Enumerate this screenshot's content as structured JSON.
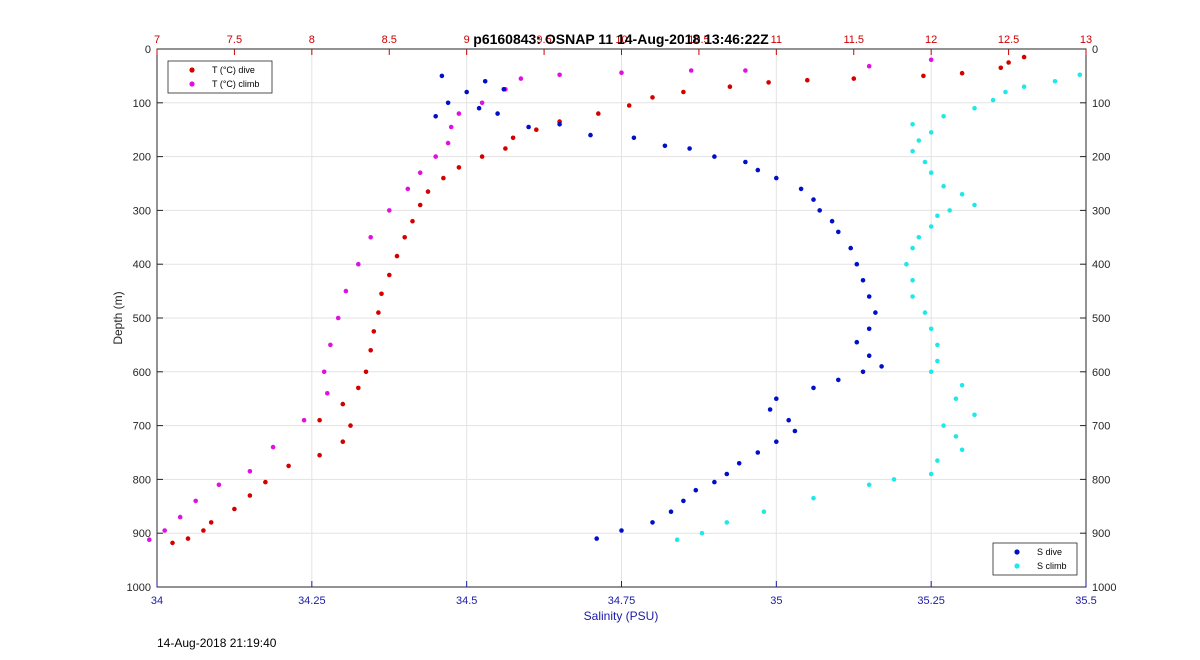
{
  "timestamp": "14-Aug-2018 21:19:40",
  "chart_data": {
    "type": "scatter",
    "title": "p6160843: OSNAP 11 14-Aug-2018 13:46:22Z",
    "xlabel": "Salinity (PSU)",
    "ylabel": "Depth (m)",
    "x_bottom": {
      "lim": [
        34,
        35.5
      ],
      "ticks": [
        "34",
        "34.25",
        "34.5",
        "34.75",
        "35",
        "35.25",
        "35.5"
      ],
      "color": "#1a1aa8"
    },
    "x_top": {
      "lim": [
        7,
        13
      ],
      "ticks": [
        "7",
        "7.5",
        "8",
        "8.5",
        "9",
        "9.5",
        "10",
        "10.5",
        "11",
        "11.5",
        "12",
        "12.5",
        "13"
      ],
      "color": "#cc0000"
    },
    "y": {
      "lim": [
        0,
        1000
      ],
      "reversed": true,
      "ticks": [
        "0",
        "100",
        "200",
        "300",
        "400",
        "500",
        "600",
        "700",
        "800",
        "900",
        "1000"
      ]
    },
    "grid": true,
    "legend_top_left": [
      {
        "name": "T (°C) dive",
        "color": "#d40000"
      },
      {
        "name": "T (°C) climb",
        "color": "#e010e0"
      }
    ],
    "legend_bottom_right": [
      {
        "name": "S dive",
        "color": "#0010c8"
      },
      {
        "name": "S climb",
        "color": "#20e8e8"
      }
    ],
    "series": [
      {
        "name": "T (°C) dive",
        "axis": "top",
        "color": "#d40000",
        "points": [
          [
            12.6,
            15
          ],
          [
            12.5,
            25
          ],
          [
            12.45,
            35
          ],
          [
            12.2,
            45
          ],
          [
            11.95,
            50
          ],
          [
            11.5,
            55
          ],
          [
            11.2,
            58
          ],
          [
            10.95,
            62
          ],
          [
            10.7,
            70
          ],
          [
            10.4,
            80
          ],
          [
            10.2,
            90
          ],
          [
            10.05,
            105
          ],
          [
            9.85,
            120
          ],
          [
            9.6,
            135
          ],
          [
            9.45,
            150
          ],
          [
            9.3,
            165
          ],
          [
            9.25,
            185
          ],
          [
            9.1,
            200
          ],
          [
            8.95,
            220
          ],
          [
            8.85,
            240
          ],
          [
            8.75,
            265
          ],
          [
            8.7,
            290
          ],
          [
            8.65,
            320
          ],
          [
            8.6,
            350
          ],
          [
            8.55,
            385
          ],
          [
            8.5,
            420
          ],
          [
            8.45,
            455
          ],
          [
            8.43,
            490
          ],
          [
            8.4,
            525
          ],
          [
            8.38,
            560
          ],
          [
            8.35,
            600
          ],
          [
            8.3,
            630
          ],
          [
            8.2,
            660
          ],
          [
            8.05,
            690
          ],
          [
            8.25,
            700
          ],
          [
            8.2,
            730
          ],
          [
            8.05,
            755
          ],
          [
            7.85,
            775
          ],
          [
            7.7,
            805
          ],
          [
            7.6,
            830
          ],
          [
            7.5,
            855
          ],
          [
            7.35,
            880
          ],
          [
            7.3,
            895
          ],
          [
            7.2,
            910
          ],
          [
            7.1,
            918
          ]
        ]
      },
      {
        "name": "T (°C) climb",
        "axis": "top",
        "color": "#e010e0",
        "points": [
          [
            12.0,
            20
          ],
          [
            11.6,
            32
          ],
          [
            10.8,
            40
          ],
          [
            10.45,
            40
          ],
          [
            10.0,
            44
          ],
          [
            9.6,
            48
          ],
          [
            9.35,
            55
          ],
          [
            9.25,
            75
          ],
          [
            9.1,
            100
          ],
          [
            8.95,
            120
          ],
          [
            8.9,
            145
          ],
          [
            8.88,
            175
          ],
          [
            8.8,
            200
          ],
          [
            8.7,
            230
          ],
          [
            8.62,
            260
          ],
          [
            8.5,
            300
          ],
          [
            8.38,
            350
          ],
          [
            8.3,
            400
          ],
          [
            8.22,
            450
          ],
          [
            8.17,
            500
          ],
          [
            8.12,
            550
          ],
          [
            8.08,
            600
          ],
          [
            8.1,
            640
          ],
          [
            7.95,
            690
          ],
          [
            7.75,
            740
          ],
          [
            7.6,
            785
          ],
          [
            7.4,
            810
          ],
          [
            7.25,
            840
          ],
          [
            7.15,
            870
          ],
          [
            7.05,
            895
          ],
          [
            6.95,
            912
          ]
        ]
      },
      {
        "name": "S dive",
        "axis": "bottom",
        "color": "#0010c8",
        "points": [
          [
            34.46,
            50
          ],
          [
            34.5,
            80
          ],
          [
            34.53,
            60
          ],
          [
            34.56,
            75
          ],
          [
            34.47,
            100
          ],
          [
            34.52,
            110
          ],
          [
            34.45,
            125
          ],
          [
            34.55,
            120
          ],
          [
            34.6,
            145
          ],
          [
            34.65,
            140
          ],
          [
            34.7,
            160
          ],
          [
            34.77,
            165
          ],
          [
            34.82,
            180
          ],
          [
            34.86,
            185
          ],
          [
            34.9,
            200
          ],
          [
            34.95,
            210
          ],
          [
            34.97,
            225
          ],
          [
            35.0,
            240
          ],
          [
            35.04,
            260
          ],
          [
            35.06,
            280
          ],
          [
            35.07,
            300
          ],
          [
            35.09,
            320
          ],
          [
            35.1,
            340
          ],
          [
            35.12,
            370
          ],
          [
            35.13,
            400
          ],
          [
            35.14,
            430
          ],
          [
            35.15,
            460
          ],
          [
            35.16,
            490
          ],
          [
            35.15,
            520
          ],
          [
            35.13,
            545
          ],
          [
            35.15,
            570
          ],
          [
            35.17,
            590
          ],
          [
            35.14,
            600
          ],
          [
            35.1,
            615
          ],
          [
            35.06,
            630
          ],
          [
            35.0,
            650
          ],
          [
            34.99,
            670
          ],
          [
            35.02,
            690
          ],
          [
            35.03,
            710
          ],
          [
            35.0,
            730
          ],
          [
            34.97,
            750
          ],
          [
            34.94,
            770
          ],
          [
            34.92,
            790
          ],
          [
            34.9,
            805
          ],
          [
            34.87,
            820
          ],
          [
            34.85,
            840
          ],
          [
            34.83,
            860
          ],
          [
            34.8,
            880
          ],
          [
            34.75,
            895
          ],
          [
            34.71,
            910
          ]
        ]
      },
      {
        "name": "S climb",
        "axis": "bottom",
        "color": "#20e8e8",
        "points": [
          [
            35.49,
            48
          ],
          [
            35.45,
            60
          ],
          [
            35.4,
            70
          ],
          [
            35.37,
            80
          ],
          [
            35.35,
            95
          ],
          [
            35.32,
            110
          ],
          [
            35.27,
            125
          ],
          [
            35.22,
            140
          ],
          [
            35.25,
            155
          ],
          [
            35.23,
            170
          ],
          [
            35.22,
            190
          ],
          [
            35.24,
            210
          ],
          [
            35.25,
            230
          ],
          [
            35.27,
            255
          ],
          [
            35.3,
            270
          ],
          [
            35.32,
            290
          ],
          [
            35.28,
            300
          ],
          [
            35.26,
            310
          ],
          [
            35.25,
            330
          ],
          [
            35.23,
            350
          ],
          [
            35.22,
            370
          ],
          [
            35.21,
            400
          ],
          [
            35.22,
            430
          ],
          [
            35.22,
            460
          ],
          [
            35.24,
            490
          ],
          [
            35.25,
            520
          ],
          [
            35.26,
            550
          ],
          [
            35.26,
            580
          ],
          [
            35.25,
            600
          ],
          [
            35.3,
            625
          ],
          [
            35.29,
            650
          ],
          [
            35.32,
            680
          ],
          [
            35.27,
            700
          ],
          [
            35.29,
            720
          ],
          [
            35.3,
            745
          ],
          [
            35.26,
            765
          ],
          [
            35.25,
            790
          ],
          [
            35.19,
            800
          ],
          [
            35.15,
            810
          ],
          [
            35.06,
            835
          ],
          [
            34.98,
            860
          ],
          [
            34.92,
            880
          ],
          [
            34.88,
            900
          ],
          [
            34.84,
            912
          ]
        ]
      }
    ]
  }
}
